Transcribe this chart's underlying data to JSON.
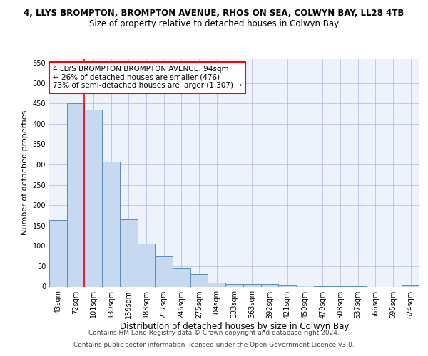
{
  "title_line1": "4, LLYS BROMPTON, BROMPTON AVENUE, RHOS ON SEA, COLWYN BAY, LL28 4TB",
  "title_line2": "Size of property relative to detached houses in Colwyn Bay",
  "xlabel": "Distribution of detached houses by size in Colwyn Bay",
  "ylabel": "Number of detached properties",
  "categories": [
    "43sqm",
    "72sqm",
    "101sqm",
    "130sqm",
    "159sqm",
    "188sqm",
    "217sqm",
    "246sqm",
    "275sqm",
    "304sqm",
    "333sqm",
    "363sqm",
    "392sqm",
    "421sqm",
    "450sqm",
    "479sqm",
    "508sqm",
    "537sqm",
    "566sqm",
    "595sqm",
    "624sqm"
  ],
  "values": [
    163,
    450,
    435,
    307,
    166,
    106,
    74,
    44,
    31,
    10,
    7,
    7,
    6,
    4,
    3,
    1,
    1,
    1,
    0,
    0,
    4
  ],
  "bar_color": "#c7d9f0",
  "bar_edge_color": "#5b8db8",
  "vline_color": "red",
  "vline_x": 1.5,
  "annotation_text": "4 LLYS BROMPTON BROMPTON AVENUE: 94sqm\n← 26% of detached houses are smaller (476)\n73% of semi-detached houses are larger (1,307) →",
  "annotation_box_color": "white",
  "annotation_box_edge_color": "red",
  "ylim": [
    0,
    560
  ],
  "yticks": [
    0,
    50,
    100,
    150,
    200,
    250,
    300,
    350,
    400,
    450,
    500,
    550
  ],
  "footer_line1": "Contains HM Land Registry data © Crown copyright and database right 2024.",
  "footer_line2": "Contains public sector information licensed under the Open Government Licence v3.0.",
  "background_color": "#eef2fb",
  "grid_color": "#b0b8d8",
  "title1_fontsize": 8.5,
  "title2_fontsize": 8.5,
  "ylabel_fontsize": 8,
  "xlabel_fontsize": 8.5,
  "tick_fontsize": 7,
  "ann_fontsize": 7.5,
  "footer_fontsize": 6.5
}
